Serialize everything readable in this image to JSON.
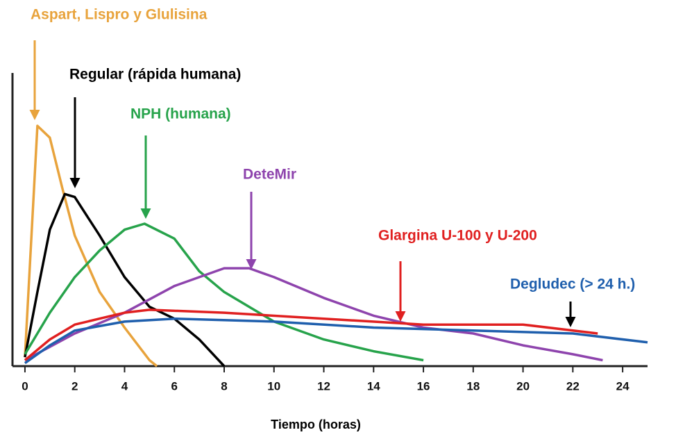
{
  "chart_data": {
    "type": "line",
    "x_label": "Tiempo (horas)",
    "xlim": [
      -0.5,
      25
    ],
    "ylim": [
      0,
      100
    ],
    "xticks": [
      0,
      2,
      4,
      6,
      8,
      10,
      12,
      14,
      16,
      18,
      20,
      22,
      24
    ],
    "series": [
      {
        "name": "Aspart, Lispro y Glulisina",
        "color": "#e8a33c",
        "x": [
          0,
          0.5,
          1,
          1.5,
          2,
          3,
          4,
          5,
          5.3
        ],
        "values": [
          3,
          81,
          77,
          60,
          44,
          25,
          13,
          2,
          0
        ]
      },
      {
        "name": "Regular (rápida humana)",
        "color": "#000000",
        "x": [
          0,
          0.5,
          1,
          1.6,
          2,
          3,
          4,
          5,
          6,
          7,
          8
        ],
        "values": [
          3,
          25,
          46,
          58,
          57,
          44,
          30,
          20,
          16,
          9,
          0
        ]
      },
      {
        "name": "NPH (humana)",
        "color": "#27a34b",
        "x": [
          0,
          1,
          2,
          3,
          4,
          4.8,
          6,
          7,
          8,
          10,
          12,
          14,
          16
        ],
        "values": [
          4,
          18,
          30,
          39,
          46,
          48,
          43,
          32,
          25,
          15,
          9,
          5,
          2
        ]
      },
      {
        "name": "DeteMir",
        "color": "#8e44ad",
        "x": [
          0,
          2,
          4,
          6,
          8,
          9,
          10,
          12,
          14,
          16,
          18,
          20,
          22,
          23.2
        ],
        "values": [
          2,
          11,
          18,
          27,
          33,
          33,
          30,
          23,
          17,
          13,
          11,
          7,
          4,
          2
        ]
      },
      {
        "name": "Glargina U-100 y U-200",
        "color": "#e02020",
        "x": [
          0,
          1,
          2,
          4,
          5,
          8,
          12,
          16,
          20,
          23
        ],
        "values": [
          2,
          9,
          14,
          18,
          19,
          18,
          16,
          14,
          14,
          11
        ]
      },
      {
        "name": "Degludec (> 24 h.)",
        "color": "#1f5fad",
        "x": [
          0,
          1,
          2,
          4,
          6,
          10,
          14,
          18,
          22,
          25
        ],
        "values": [
          1,
          7,
          12,
          15,
          16,
          15,
          13,
          12,
          11,
          8
        ]
      }
    ]
  }
}
